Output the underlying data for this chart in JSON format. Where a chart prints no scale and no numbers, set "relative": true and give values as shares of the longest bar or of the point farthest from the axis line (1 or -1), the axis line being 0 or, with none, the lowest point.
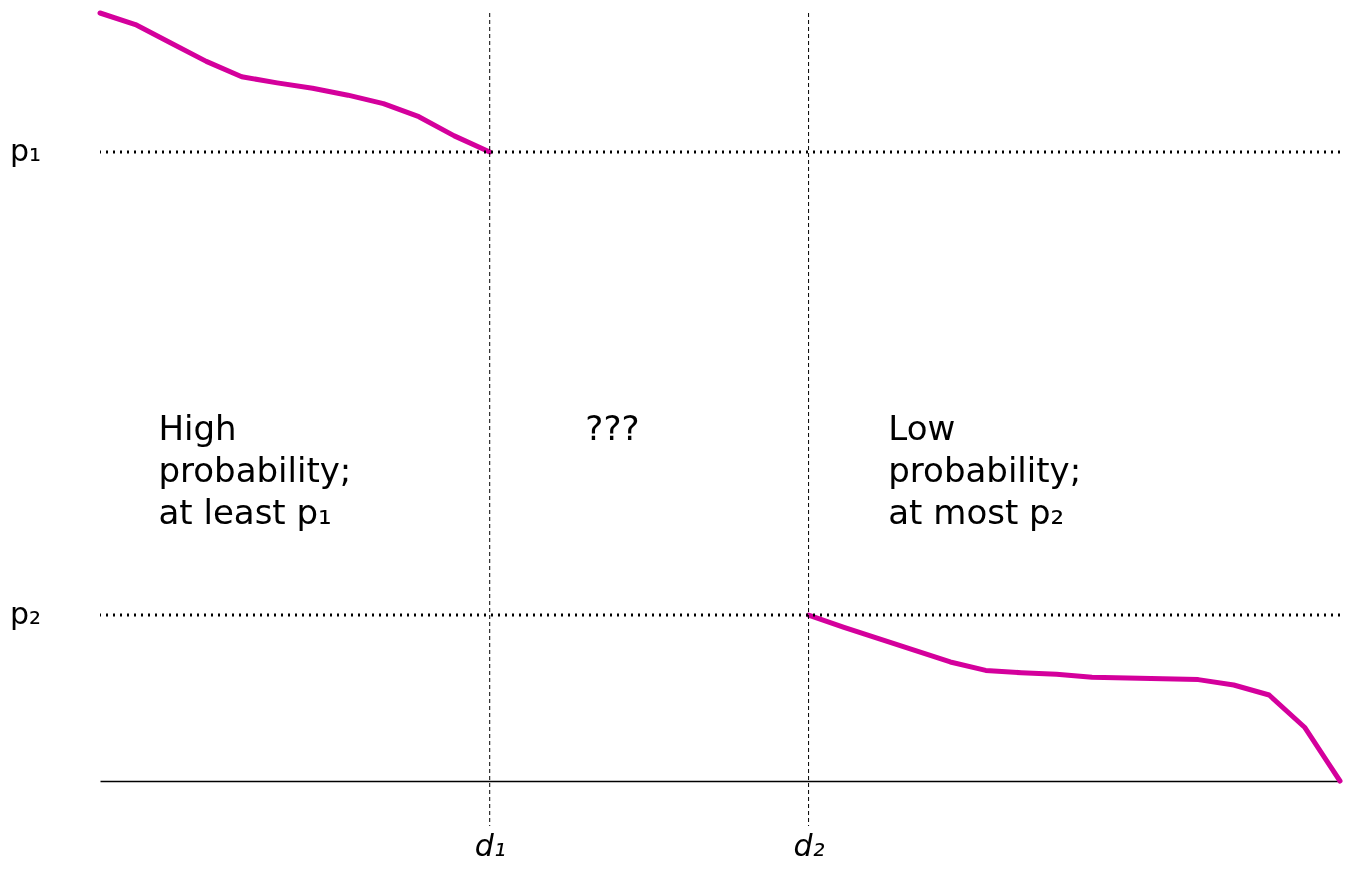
{
  "chart_data": {
    "type": "line",
    "relative": true,
    "categories": [
      null,
      null,
      null,
      null,
      null,
      null,
      null,
      null,
      null,
      null,
      null,
      "d₁",
      null,
      null,
      null,
      null,
      null,
      null,
      null,
      null,
      "d₂",
      null,
      null,
      null,
      null,
      null,
      null,
      null,
      null,
      null,
      null,
      null,
      null,
      null,
      null,
      null
    ],
    "series": [
      {
        "color": "#d4009c",
        "values": [
          1.0,
          0.985,
          0.961,
          0.937,
          0.917,
          0.909,
          0.902,
          0.893,
          0.882,
          0.865,
          0.84,
          0.819,
          null,
          null,
          null,
          null,
          null,
          null,
          null,
          null,
          0.216,
          0.2,
          0.185,
          0.17,
          0.155,
          0.144,
          0.141,
          0.139,
          0.135,
          0.134,
          0.133,
          0.132,
          0.125,
          0.112,
          0.07,
          0
        ]
      }
    ],
    "ref_lines": [
      {
        "axis": "y",
        "value": 0.819,
        "label": "p₁",
        "line_style": "dotted"
      },
      {
        "axis": "y",
        "value": 0.216,
        "label": "p₂",
        "line_style": "dotted"
      },
      {
        "axis": "x",
        "value": "d₁",
        "line_style": "dashed"
      },
      {
        "axis": "x",
        "value": "d₂",
        "line_style": "dashed"
      }
    ],
    "annotations": [
      "High probability; at least p₁",
      "???",
      "Low probability; at most p₂"
    ],
    "grid": false
  }
}
